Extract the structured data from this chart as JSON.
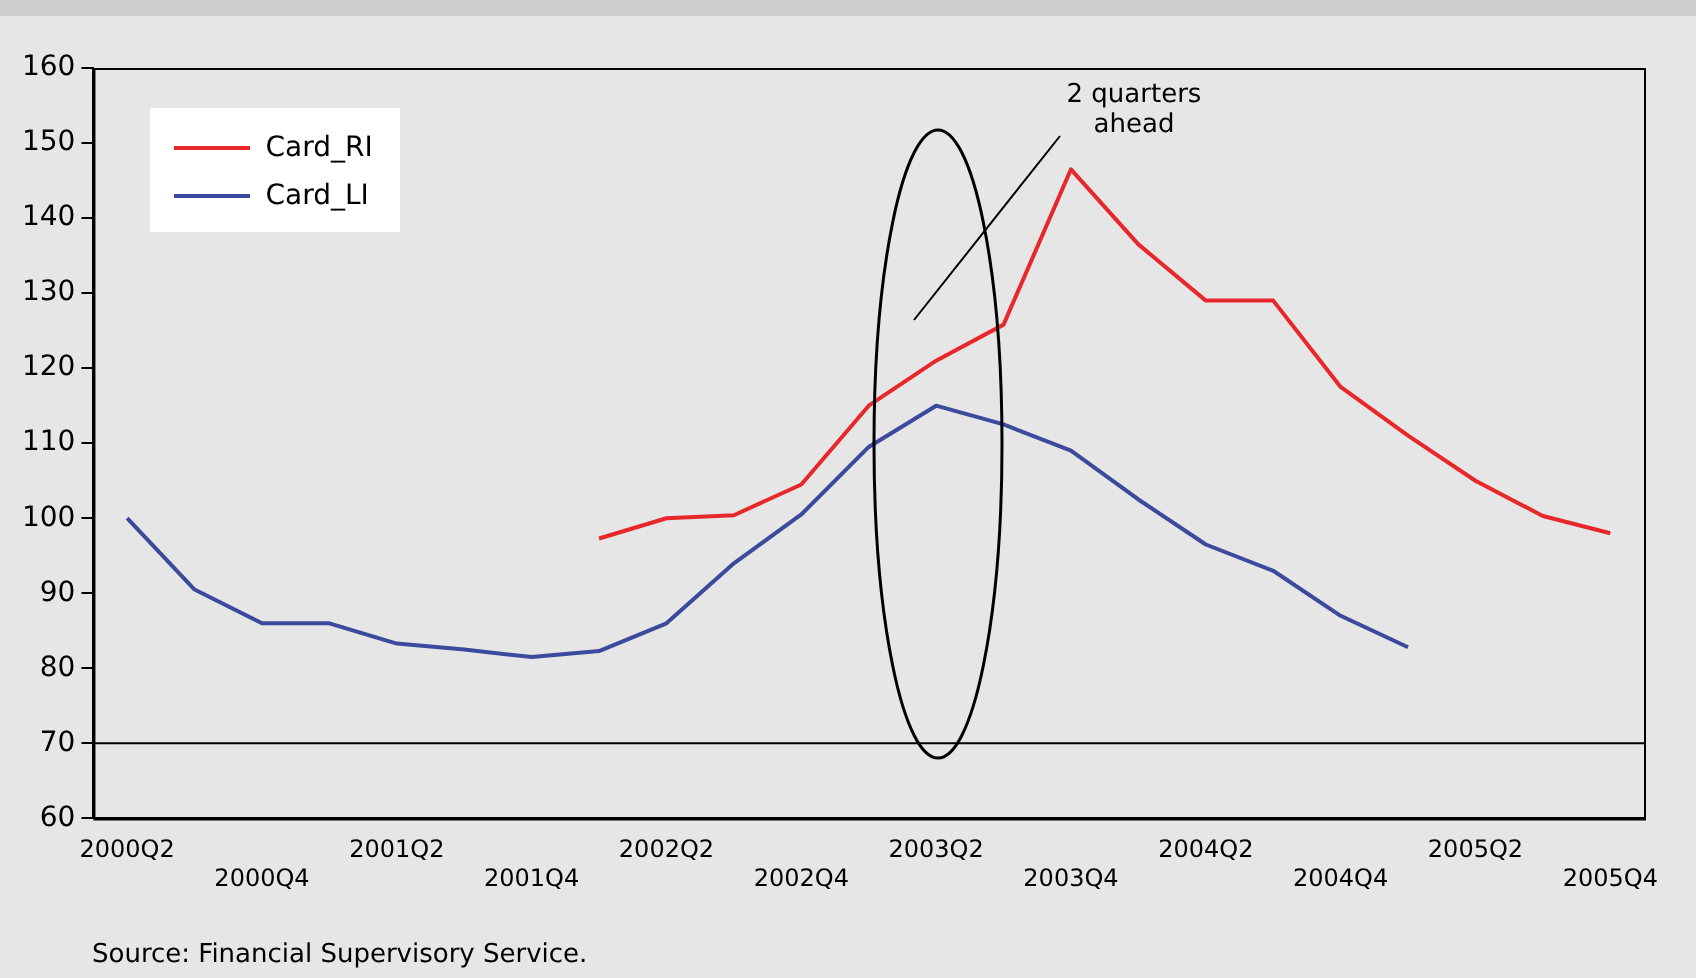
{
  "chart_data": {
    "type": "line",
    "categories": [
      "2000Q2",
      null,
      "2000Q4",
      null,
      "2001Q2",
      null,
      "2001Q4",
      null,
      "2002Q2",
      null,
      "2002Q4",
      null,
      "2003Q2",
      null,
      "2003Q4",
      null,
      "2004Q2",
      null,
      "2004Q4",
      null,
      "2005Q2",
      null,
      "2005Q4"
    ],
    "series": [
      {
        "name": "Card_RI",
        "color": "#e8272a",
        "values": [
          null,
          null,
          null,
          null,
          null,
          null,
          null,
          97.3,
          100,
          100.4,
          104.5,
          115,
          121,
          125.8,
          146.5,
          136.5,
          129,
          129,
          117.5,
          111,
          105,
          100.3,
          98
        ]
      },
      {
        "name": "Card_LI",
        "color": "#3b4a9c",
        "values": [
          100,
          90.5,
          86,
          86,
          83.3,
          82.5,
          81.5,
          82.3,
          86,
          94,
          100.5,
          109.5,
          115,
          112.5,
          109,
          102.5,
          96.5,
          93,
          87,
          82.8,
          null,
          null,
          null
        ]
      }
    ],
    "ylim": [
      60,
      160
    ],
    "yticks": [
      60,
      70,
      80,
      90,
      100,
      110,
      120,
      130,
      140,
      150,
      160
    ],
    "ref_lines": [
      {
        "axis": "y",
        "value": 70,
        "color": "#000000"
      }
    ],
    "grid": false,
    "legend": "top left",
    "marker": "none",
    "line_style": "solid",
    "annotations": [
      "2 quarters ahead",
      "Source: Financial Supervisory Service."
    ]
  }
}
